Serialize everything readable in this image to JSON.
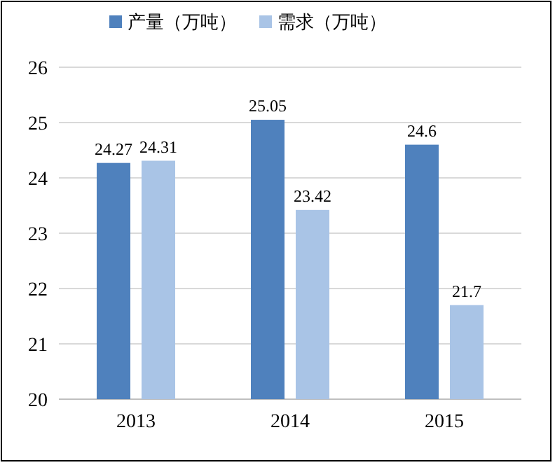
{
  "chart_data": {
    "type": "bar",
    "categories": [
      "2013",
      "2014",
      "2015"
    ],
    "series": [
      {
        "name": "产量（万吨）",
        "color": "#4f81bd",
        "values": [
          24.27,
          25.05,
          24.6
        ]
      },
      {
        "name": "需求（万吨）",
        "color": "#a9c4e6",
        "values": [
          24.31,
          23.42,
          21.7
        ]
      }
    ],
    "ylim": [
      20,
      26
    ],
    "yticks": [
      20,
      21,
      22,
      23,
      24,
      25,
      26
    ],
    "grid": "y",
    "legend": "top",
    "data_labels": true
  }
}
